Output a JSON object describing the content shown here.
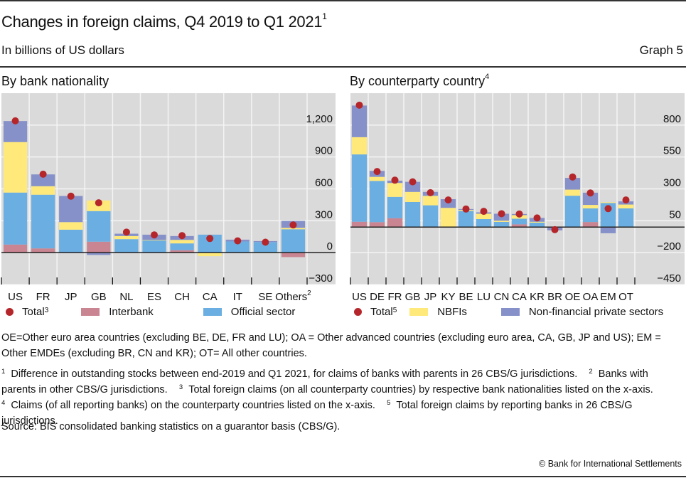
{
  "header": {
    "title": "Changes in foreign claims, Q4 2019 to Q1 2021",
    "title_sup": "1",
    "subtitle": "In billions of US dollars",
    "graph_number": "Graph 5"
  },
  "colors": {
    "interbank": "#c98591",
    "official": "#6aaee2",
    "nbfi": "#ffe97a",
    "nonfin": "#8591c8",
    "total": "#b5262b",
    "plot_bg": "#dadada",
    "grid": "#f4f4f4"
  },
  "legend_left": {
    "total": "Total",
    "total_sup": "3",
    "interbank": "Interbank",
    "official": "Official sector"
  },
  "legend_right": {
    "total": "Total",
    "total_sup": "5",
    "nbfi": "NBFIs",
    "nonfin": "Non-financial private sectors"
  },
  "chart_data": [
    {
      "type": "bar",
      "stacked": true,
      "title": "By bank nationality",
      "title_sup": "",
      "xlabel": "",
      "ylabel": "",
      "ylim": [
        -300,
        1500
      ],
      "yticks": [
        -300,
        0,
        300,
        600,
        900,
        1200
      ],
      "ytick_labels": [
        "−300",
        "0",
        "300",
        "600",
        "900",
        "1,200"
      ],
      "y_axis_side": "right",
      "grid": true,
      "legend_position": "bottom",
      "categories": [
        "US",
        "FR",
        "JP",
        "GB",
        "NL",
        "ES",
        "CH",
        "CA",
        "IT",
        "SE",
        "Others"
      ],
      "category_sups": [
        "",
        "",
        "",
        "",
        "",
        "",
        "",
        "",
        "",
        "",
        "2"
      ],
      "series": [
        {
          "name": "Interbank",
          "key": "interbank",
          "values": [
            76,
            40,
            0,
            103,
            0,
            0,
            23,
            0,
            0,
            0,
            -42
          ]
        },
        {
          "name": "Official sector",
          "key": "official",
          "values": [
            489,
            505,
            216,
            288,
            127,
            116,
            64,
            169,
            105,
            100,
            220
          ]
        },
        {
          "name": "NBFIs",
          "key": "nbfi",
          "values": [
            475,
            80,
            71,
            100,
            29,
            3,
            33,
            -33,
            0,
            -3,
            13
          ]
        },
        {
          "name": "Non-financial private sectors",
          "key": "nonfin",
          "values": [
            198,
            111,
            246,
            -22,
            22,
            50,
            36,
            0,
            17,
            9,
            65
          ]
        }
      ],
      "totals": {
        "name": "Total",
        "values": [
          1240,
          738,
          531,
          469,
          193,
          167,
          160,
          133,
          111,
          98,
          260
        ]
      }
    },
    {
      "type": "bar",
      "stacked": true,
      "title": "By counterparty country",
      "title_sup": "4",
      "xlabel": "",
      "ylabel": "",
      "ylim": [
        -450,
        1050
      ],
      "yticks": [
        -450,
        -200,
        50,
        300,
        550,
        800
      ],
      "ytick_labels": [
        "−450",
        "−200",
        "50",
        "300",
        "550",
        "800"
      ],
      "y_axis_side": "right",
      "grid": true,
      "legend_position": "bottom",
      "categories": [
        "US",
        "DE",
        "FR",
        "GB",
        "JP",
        "KY",
        "BE",
        "LU",
        "CN",
        "CA",
        "KR",
        "BR",
        "OE",
        "OA",
        "EM",
        "OT"
      ],
      "category_sups": [
        "",
        "",
        "",
        "",
        "",
        "",
        "",
        "",
        "",
        "",
        "",
        "",
        "",
        "",
        "",
        ""
      ],
      "series": [
        {
          "name": "Interbank",
          "key": "interbank",
          "values": [
            42,
            39,
            70,
            0,
            -4,
            -4,
            4,
            0,
            0,
            22,
            0,
            0,
            0,
            40,
            0,
            0
          ]
        },
        {
          "name": "Official sector",
          "key": "official",
          "values": [
            528,
            323,
            167,
            197,
            171,
            0,
            123,
            63,
            41,
            44,
            35,
            0,
            246,
            107,
            189,
            147
          ]
        },
        {
          "name": "NBFIs",
          "key": "nbfi",
          "values": [
            135,
            32,
            109,
            79,
            74,
            151,
            8,
            42,
            9,
            28,
            7,
            0,
            48,
            27,
            6,
            30
          ]
        },
        {
          "name": "Non-financial private sectors",
          "key": "nonfin",
          "values": [
            248,
            47,
            18,
            79,
            31,
            68,
            7,
            11,
            55,
            9,
            30,
            -25,
            92,
            96,
            -48,
            25
          ]
        }
      ],
      "totals": {
        "name": "Total",
        "values": [
          956,
          436,
          368,
          355,
          270,
          213,
          142,
          124,
          105,
          103,
          72,
          -20,
          393,
          268,
          145,
          213
        ]
      }
    }
  ],
  "notes": {
    "abbreviations": "OE=Other euro area countries (excluding BE, DE, FR and LU); OA = Other advanced countries (excluding euro area, CA, GB, JP and US); EM = Other EMDEs (excluding BR, CN and KR); OT= All other countries.",
    "footnotes": [
      {
        "num": "1",
        "text": "Difference in  outstanding stocks between end-2019 and Q1 2021, for claims of banks with parents in 26 CBS/G jurisdictions."
      },
      {
        "num": "2",
        "text": "Banks with parents in other CBS/G jurisdictions."
      },
      {
        "num": "3",
        "text": "Total foreign claims (on all counterparty countries) by respective bank nationalities listed on the x-axis."
      },
      {
        "num": "4",
        "text": "Claims (of all reporting banks) on the counterparty countries listed on the x-axis."
      },
      {
        "num": "5",
        "text": "Total foreign claims by reporting banks in 26 CBS/G jurisdictions."
      }
    ],
    "source": "Source: BIS consolidated banking statistics on a guarantor basis (CBS/G)."
  },
  "copyright": "© Bank for International Settlements"
}
